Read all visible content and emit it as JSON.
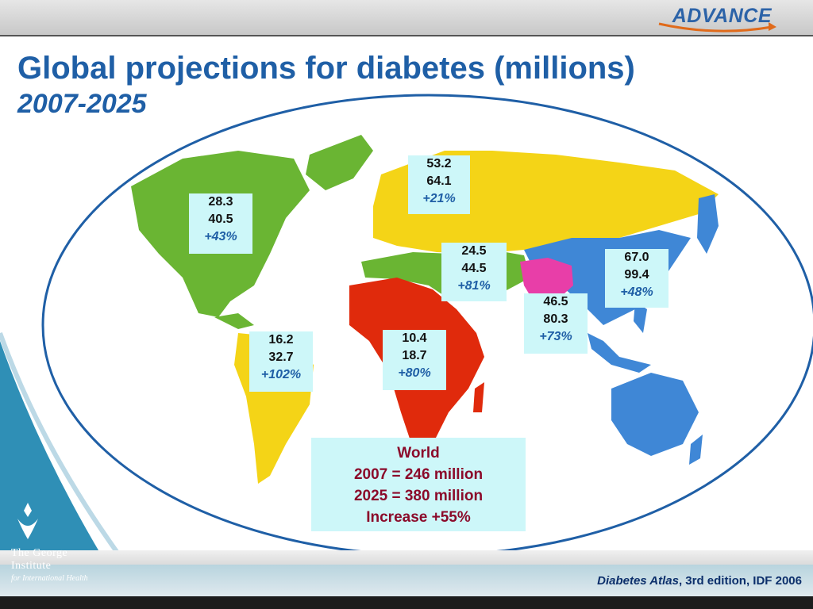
{
  "header": {
    "logo_text": "ADVANCE"
  },
  "title": "Global projections for diabetes (millions)",
  "subtitle": "2007-2025",
  "regions": [
    {
      "name": "North America",
      "v2007": "28.3",
      "v2025": "40.5",
      "change": "+43%",
      "color": "#6ab533"
    },
    {
      "name": "Europe",
      "v2007": "53.2",
      "v2025": "64.1",
      "change": "+21%",
      "color": "#f4d417"
    },
    {
      "name": "Eastern Mediterranean and Middle East",
      "v2007": "24.5",
      "v2025": "44.5",
      "change": "+81%",
      "color": "#6ab533"
    },
    {
      "name": "Western Pacific",
      "v2007": "67.0",
      "v2025": "99.4",
      "change": "+48%",
      "color": "#3f87d6"
    },
    {
      "name": "South-East Asia",
      "v2007": "46.5",
      "v2025": "80.3",
      "change": "+73%",
      "color": "#e83ea8"
    },
    {
      "name": "Africa",
      "v2007": "10.4",
      "v2025": "18.7",
      "change": "+80%",
      "color": "#e02a0c"
    },
    {
      "name": "South and Central America",
      "v2007": "16.2",
      "v2025": "32.7",
      "change": "+102%",
      "color": "#f4d417"
    }
  ],
  "world": {
    "label": "World",
    "line2007": "2007 = 246 million",
    "line2025": "2025 = 380 million",
    "increase": "Increase +55%"
  },
  "footer": {
    "citation_italic": "Diabetes Atlas",
    "citation_rest": ", 3rd edition, IDF 2006",
    "institute_line1": "The George",
    "institute_line2": "Institute",
    "institute_line3": "for International Health"
  },
  "colors": {
    "title_blue": "#1f5fa6",
    "ellipse_blue": "#1f5fa6",
    "stat_box_bg": "#cdf7f9",
    "world_text": "#8b0a2a",
    "left_band_teal": "#2f8fb6"
  }
}
